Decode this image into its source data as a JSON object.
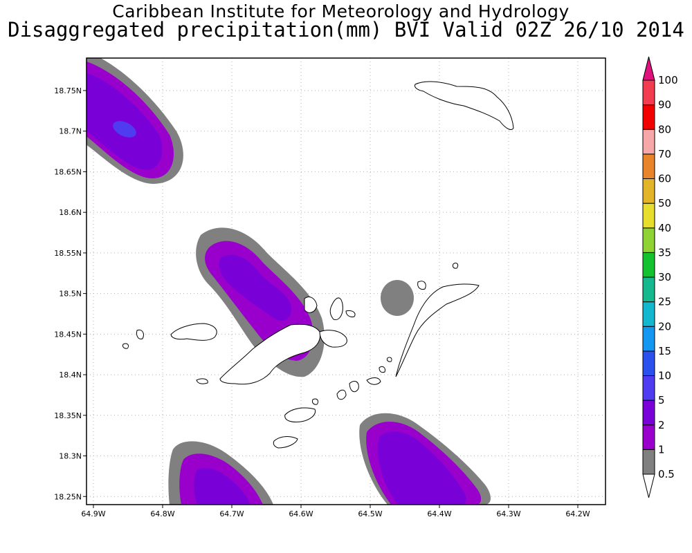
{
  "header": {
    "institution": "Caribbean Institute for Meteorology and Hydrology",
    "product": "Disaggregated precipitation(mm) BVI Valid 02Z 26/10 2014"
  },
  "axes": {
    "x_ticks": [
      "64.9W",
      "64.8W",
      "64.7W",
      "64.6W",
      "64.5W",
      "64.4W",
      "64.3W",
      "64.2W"
    ],
    "y_ticks": [
      "18.75N",
      "18.7N",
      "18.65N",
      "18.6N",
      "18.55N",
      "18.5N",
      "18.45N",
      "18.4N",
      "18.35N",
      "18.3N",
      "18.25N"
    ],
    "lon_range": [
      -64.91,
      -64.16
    ],
    "lat_range": [
      18.24,
      18.79
    ],
    "grid": true
  },
  "colorbar": {
    "levels": [
      "0.5",
      "1",
      "2",
      "5",
      "10",
      "15",
      "20",
      "25",
      "30",
      "35",
      "40",
      "50",
      "60",
      "70",
      "80",
      "90",
      "100"
    ],
    "colors": [
      "#808080",
      "#9a00cc",
      "#7a00d8",
      "#4f3cf0",
      "#2a50ee",
      "#1497f0",
      "#13b8cf",
      "#16b88e",
      "#13c22e",
      "#8ed233",
      "#e6dd2c",
      "#e2b428",
      "#e8842a",
      "#f6a8a8",
      "#f20000",
      "#f23c50",
      "#e0117c"
    ]
  },
  "rain_areas_description_free": true,
  "map_layers": {
    "colors": {
      "minimal_rain": "#808080",
      "light_rain": "#9a00cc",
      "moderate_rain": "#7a00d8",
      "heavier_rain": "#4f3cf0",
      "land_fill": "#ffffff",
      "coastline": "#000000",
      "grid": "#b0b0b0"
    }
  }
}
